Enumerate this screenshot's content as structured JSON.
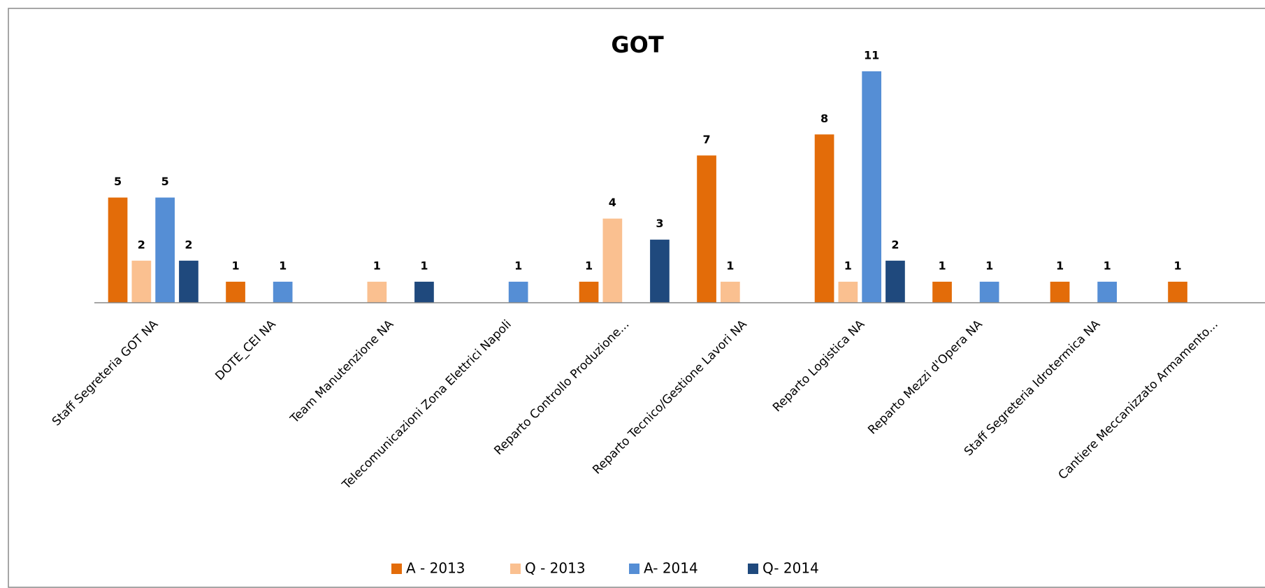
{
  "chart_data": {
    "type": "bar",
    "title": "GOT",
    "categories": [
      "Staff Segreteria GOT NA",
      "DOTE_CEI NA",
      "Team Manutenzione NA",
      "Telecomunicazioni Zona Elettrici Napoli",
      "Reparto Controllo Produzione...",
      "Reparto Tecnico/Gestione Lavori NA",
      "Reparto Logistica NA",
      "Reparto Mezzi d'Opera NA",
      "Staff Segreteria Idrotermica NA",
      "Cantiere Meccanizzato Armamento..."
    ],
    "series": [
      {
        "name": "A - 2013",
        "color": "#e36c09",
        "values": [
          5,
          1,
          null,
          null,
          1,
          7,
          8,
          1,
          1,
          1
        ]
      },
      {
        "name": "Q - 2013",
        "color": "#fac090",
        "values": [
          2,
          null,
          1,
          null,
          4,
          1,
          1,
          null,
          null,
          null
        ]
      },
      {
        "name": "A- 2014",
        "color": "#558ed5",
        "values": [
          5,
          1,
          null,
          1,
          null,
          null,
          11,
          1,
          1,
          null
        ]
      },
      {
        "name": "Q- 2014",
        "color": "#1f497d",
        "values": [
          2,
          null,
          1,
          null,
          3,
          null,
          2,
          null,
          null,
          null
        ]
      }
    ],
    "legend": "bottom"
  }
}
